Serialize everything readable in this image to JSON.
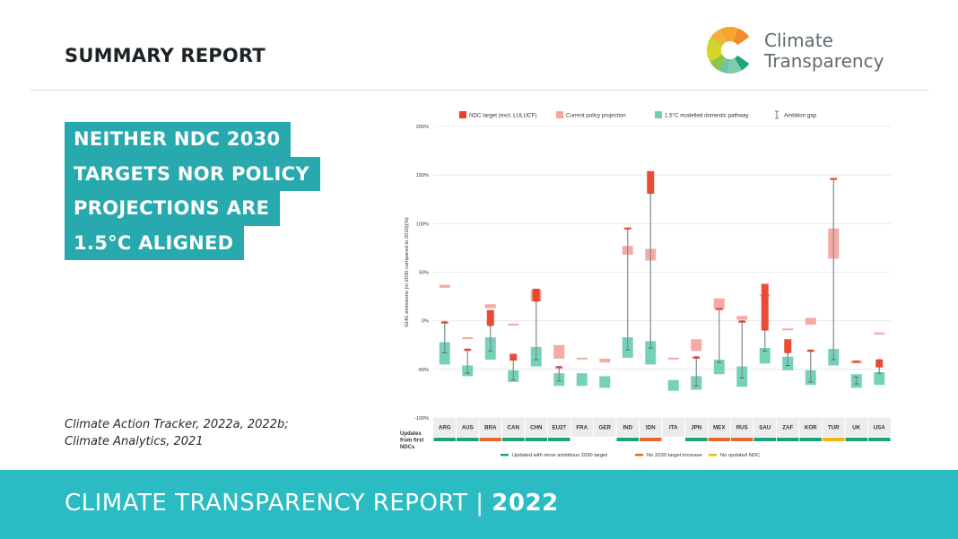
{
  "header": {
    "title": "SUMMARY REPORT"
  },
  "logo": {
    "line1": "Climate",
    "line2": "Transparency"
  },
  "headline": {
    "lines": [
      "NEITHER NDC 2030",
      "TARGETS NOR POLICY",
      "PROJECTIONS ARE",
      "1.5°C ALIGNED"
    ]
  },
  "source": {
    "line1": "Climate Action Tracker, 2022a, 2022b;",
    "line2": "Climate Analytics, 2021"
  },
  "footer": {
    "text": "CLIMATE TRANSPARENCY REPORT | ",
    "year": "2022"
  },
  "colors": {
    "teal": "#27a9ad",
    "footer": "#2abcc2",
    "ndc": "#e8412a",
    "policy": "#f4a79f",
    "pathway": "#6fcfb5",
    "updated": "#1aa37a",
    "no_increase": "#e8682c",
    "no_update": "#f0b619"
  },
  "chart_data": {
    "type": "range-bar",
    "ylabel": "GHG emissions (in 2030 compared to 2010)(%)",
    "ylim": [
      -100,
      200
    ],
    "yticks": [
      200,
      150,
      100,
      50,
      0,
      -50,
      -100
    ],
    "ytick_labels": [
      "200%",
      "150%",
      "100%",
      "50%",
      "0%",
      "-50%",
      "-100%"
    ],
    "grid": true,
    "legend": {
      "position": "top",
      "items": [
        {
          "key": "ndc",
          "label": "NDC target (excl. LULUCF)"
        },
        {
          "key": "policy",
          "label": "Current policy projection"
        },
        {
          "key": "pathway",
          "label": "1.5°C modelled domestic pathway"
        },
        {
          "key": "gap",
          "label": "Ambition gap"
        }
      ]
    },
    "categories": [
      "ARG",
      "AUS",
      "BRA",
      "CAN",
      "CHN",
      "EU27",
      "FRA",
      "GER",
      "IND",
      "IDN",
      "ITA",
      "JPN",
      "MEX",
      "RUS",
      "SAU",
      "ZAF",
      "KOR",
      "TUR",
      "UK",
      "USA"
    ],
    "series": {
      "ndc": [
        [
          -2,
          -1
        ],
        [
          -31,
          -29
        ],
        [
          -5,
          11
        ],
        [
          -41,
          -34
        ],
        [
          20,
          33
        ],
        [
          -49,
          -47
        ],
        null,
        null,
        [
          94,
          96
        ],
        [
          131,
          154
        ],
        null,
        [
          -39,
          -37
        ],
        [
          11,
          13
        ],
        [
          -2,
          0
        ],
        [
          -10,
          38
        ],
        [
          -33,
          -19
        ],
        [
          -32,
          -30
        ],
        [
          145,
          147
        ],
        [
          -43,
          -41
        ],
        [
          -48,
          -40
        ]
      ],
      "policy": [
        [
          34,
          37
        ],
        [
          -18,
          -17
        ],
        [
          13,
          17
        ],
        [
          -4,
          -3
        ],
        [
          20,
          32
        ],
        [
          -39,
          -25
        ],
        [
          -39,
          -38
        ],
        [
          -43,
          -39
        ],
        [
          68,
          77
        ],
        [
          62,
          74
        ],
        [
          -39,
          -38
        ],
        [
          -31,
          -19
        ],
        [
          12,
          23
        ],
        [
          1,
          5
        ],
        [
          26,
          27
        ],
        [
          -9,
          -8
        ],
        [
          -4,
          3
        ],
        [
          64,
          95
        ],
        [
          -44,
          -41
        ],
        [
          -14,
          -12
        ]
      ],
      "pathway": [
        [
          -45,
          -22
        ],
        [
          -57,
          -46
        ],
        [
          -40,
          -17
        ],
        [
          -63,
          -51
        ],
        [
          -47,
          -27
        ],
        [
          -67,
          -54
        ],
        [
          -67,
          -54
        ],
        [
          -69,
          -57
        ],
        [
          -38,
          -17
        ],
        [
          -45,
          -21
        ],
        [
          -72,
          -61
        ],
        [
          -71,
          -57
        ],
        [
          -55,
          -40
        ],
        [
          -68,
          -47
        ],
        [
          -44,
          -28
        ],
        [
          -51,
          -37
        ],
        [
          -66,
          -51
        ],
        [
          -46,
          -29
        ],
        [
          -69,
          -55
        ],
        [
          -66,
          -53
        ]
      ],
      "gap": [
        [
          -33,
          -1
        ],
        [
          -54,
          -29
        ],
        [
          -31,
          -5
        ],
        [
          -61,
          -39
        ],
        [
          -40,
          20
        ],
        [
          -62,
          -47
        ],
        null,
        null,
        [
          -30,
          95
        ],
        [
          -28,
          131
        ],
        null,
        [
          -67,
          -37
        ],
        [
          -43,
          12
        ],
        [
          -59,
          0
        ],
        [
          -31,
          -9
        ],
        [
          -46,
          -33
        ],
        [
          -63,
          -30
        ],
        [
          -40,
          146
        ],
        [
          -65,
          -58
        ],
        [
          -54,
          -40
        ]
      ]
    },
    "updates": {
      "label": "Updates from first NDCs",
      "status": [
        "updated",
        "updated",
        "no_increase",
        "updated",
        "updated",
        "updated",
        null,
        null,
        "updated",
        "no_increase",
        null,
        "updated",
        "no_increase",
        "no_increase",
        "updated",
        "updated",
        "updated",
        "no_update",
        "updated",
        "updated"
      ],
      "legend": [
        {
          "key": "updated",
          "label": "Updated with more ambitious 2030 target"
        },
        {
          "key": "no_increase",
          "label": "No 2030 target increase"
        },
        {
          "key": "no_update",
          "label": "No updated NDC"
        }
      ]
    }
  }
}
